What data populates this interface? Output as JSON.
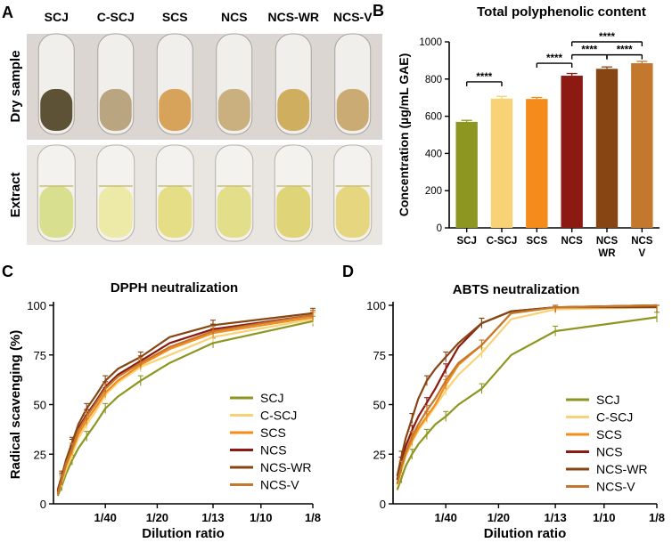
{
  "panel_labels": {
    "a": "A",
    "b": "B",
    "c": "C",
    "d": "D"
  },
  "photo": {
    "samples": [
      "SCJ",
      "C-SCJ",
      "SCS",
      "NCS",
      "NCS-WR",
      "NCS-V"
    ],
    "row_labels": [
      "Dry sample",
      "Extract"
    ],
    "dry_colors": [
      "#5e5236",
      "#b9a680",
      "#d7a35b",
      "#c9b07e",
      "#cfae60",
      "#cbab74"
    ],
    "extract_colors": [
      "#d8df8e",
      "#eceaa6",
      "#e6de86",
      "#e2de8a",
      "#e0d478",
      "#e6d680"
    ]
  },
  "colors": {
    "SCJ": "#8c9620",
    "C-SCJ": "#f8d275",
    "SCS": "#f48b1b",
    "NCS": "#8c1a13",
    "NCS-WR": "#874513",
    "NCS-V": "#c4782d"
  },
  "chart_data": [
    {
      "type": "bar",
      "title": "Total polyphenolic content",
      "xlabel": "",
      "ylabel": "Concentration (µg/mL GAE)",
      "categories": [
        "SCJ",
        "C-SCJ",
        "SCS",
        "NCS",
        "NCS WR",
        "NCS V"
      ],
      "tick_lines": [
        [
          "SCJ"
        ],
        [
          "C-SCJ"
        ],
        [
          "SCS"
        ],
        [
          "NCS"
        ],
        [
          "NCS",
          "WR"
        ],
        [
          "NCS",
          "V"
        ]
      ],
      "values": [
        570,
        695,
        693,
        818,
        855,
        885
      ],
      "errors": [
        8,
        12,
        8,
        12,
        10,
        10
      ],
      "colors": [
        "#8c9620",
        "#f8d275",
        "#f48b1b",
        "#8c1a13",
        "#874513",
        "#c4782d"
      ],
      "ylim": [
        0,
        1000
      ],
      "yticks": [
        0,
        200,
        400,
        600,
        800,
        1000
      ],
      "significance": [
        {
          "from": 0,
          "to": 1,
          "y": 785,
          "label": "****"
        },
        {
          "from": 2,
          "to": 3,
          "y": 885,
          "label": "****"
        },
        {
          "from": 3,
          "to": 4,
          "y": 930,
          "label": "****"
        },
        {
          "from": 4,
          "to": 5,
          "y": 930,
          "label": "****"
        },
        {
          "from": 3,
          "to": 5,
          "y": 1000,
          "label": "****"
        }
      ]
    },
    {
      "type": "line",
      "title": "DPPH neutralization",
      "xlabel": "Dilution ratio",
      "ylabel": "Radical scavenging (%)",
      "ylim": [
        0,
        100
      ],
      "yticks": [
        0,
        25,
        50,
        75,
        100
      ],
      "x": [
        0.002,
        0.004,
        0.006,
        0.009,
        0.012,
        0.016,
        0.02,
        0.025,
        0.031,
        0.042,
        0.056,
        0.0769,
        0.125
      ],
      "xticks": [
        0.025,
        0.05,
        0.0769,
        0.1,
        0.125
      ],
      "xtick_labels": [
        "1/40",
        "1/20",
        "1/13",
        "1/10",
        "1/8"
      ],
      "legend": "right",
      "series": [
        {
          "name": "SCJ",
          "values": [
            4,
            9,
            15,
            22,
            28,
            34,
            40,
            48,
            54,
            62,
            71,
            81,
            92
          ]
        },
        {
          "name": "C-SCJ",
          "values": [
            5,
            11,
            17,
            25,
            33,
            40,
            46,
            55,
            61,
            69,
            75,
            84,
            93
          ]
        },
        {
          "name": "SCS",
          "values": [
            5,
            12,
            19,
            27,
            35,
            42,
            48,
            56,
            62,
            70,
            78,
            86,
            94
          ]
        },
        {
          "name": "NCS",
          "values": [
            6,
            13,
            21,
            30,
            38,
            45,
            51,
            59,
            65,
            72,
            81,
            88,
            95
          ]
        },
        {
          "name": "NCS-WR",
          "values": [
            7,
            14,
            22,
            31,
            40,
            48,
            54,
            62,
            68,
            74,
            84,
            90,
            96
          ]
        },
        {
          "name": "NCS-V",
          "values": [
            5,
            12,
            20,
            28,
            37,
            44,
            50,
            58,
            64,
            71,
            79,
            87,
            95
          ]
        }
      ]
    },
    {
      "type": "line",
      "title": "ABTS neutralization",
      "xlabel": "Dilution ratio",
      "ylabel": "",
      "ylim": [
        0,
        100
      ],
      "yticks": [
        0,
        25,
        50,
        75,
        100
      ],
      "x": [
        0.002,
        0.004,
        0.006,
        0.009,
        0.012,
        0.016,
        0.02,
        0.025,
        0.031,
        0.042,
        0.056,
        0.0769,
        0.125
      ],
      "xticks": [
        0.025,
        0.05,
        0.0769,
        0.1,
        0.125
      ],
      "xtick_labels": [
        "1/40",
        "1/20",
        "1/13",
        "1/10",
        "1/8"
      ],
      "legend": "right",
      "series": [
        {
          "name": "SCJ",
          "values": [
            7,
            13,
            19,
            25,
            30,
            35,
            40,
            44,
            50,
            58,
            75,
            87,
            94
          ]
        },
        {
          "name": "C-SCJ",
          "values": [
            9,
            17,
            24,
            31,
            37,
            43,
            49,
            57,
            65,
            76,
            93,
            98,
            99
          ]
        },
        {
          "name": "SCS",
          "values": [
            10,
            18,
            25,
            32,
            38,
            44,
            50,
            60,
            70,
            80,
            96,
            99,
            100
          ]
        },
        {
          "name": "NCS",
          "values": [
            12,
            21,
            29,
            37,
            44,
            51,
            58,
            68,
            79,
            91,
            97,
            99,
            100
          ]
        },
        {
          "name": "NCS-WR",
          "values": [
            14,
            24,
            33,
            43,
            53,
            62,
            68,
            74,
            81,
            91,
            97,
            99,
            99
          ]
        },
        {
          "name": "NCS-V",
          "values": [
            10,
            19,
            26,
            34,
            40,
            47,
            53,
            62,
            71,
            80,
            96,
            99,
            100
          ]
        }
      ]
    }
  ]
}
